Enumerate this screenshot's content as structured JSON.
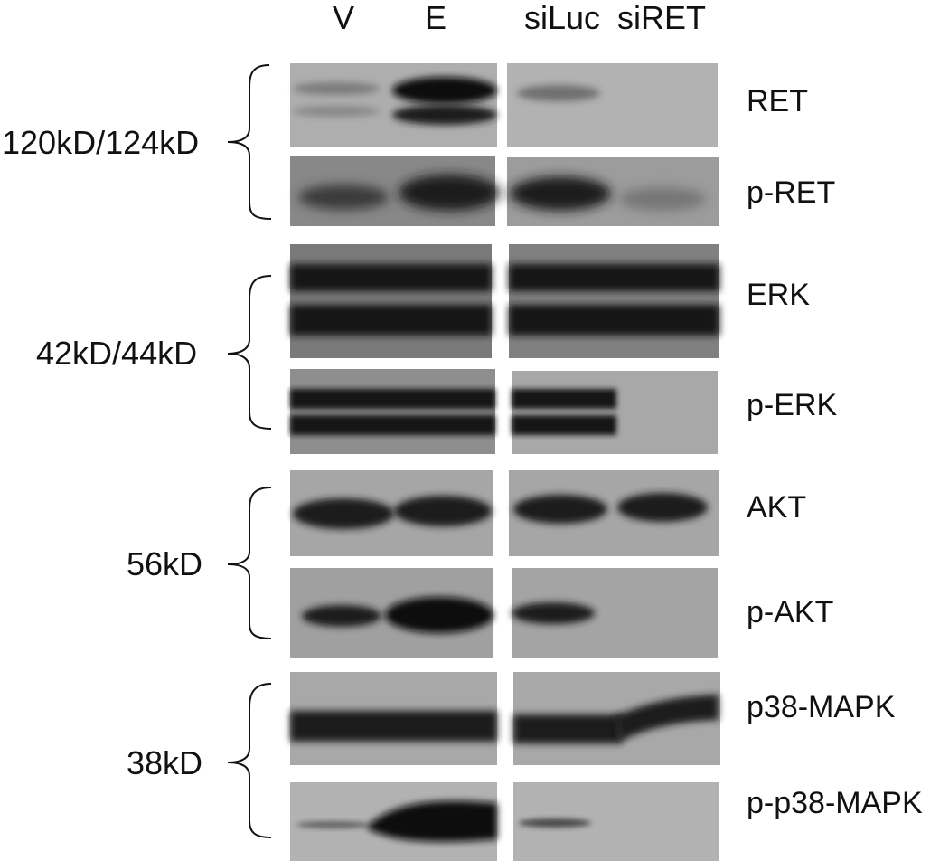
{
  "lanes": {
    "v": "V",
    "e": "E",
    "siluc": "siLuc",
    "siret": "siRET"
  },
  "molecular_weights": {
    "ret": "120kD/124kD",
    "erk": "42kD/44kD",
    "akt": "56kD",
    "p38": "38kD"
  },
  "proteins": {
    "ret": "RET",
    "p_ret": "p-RET",
    "erk": "ERK",
    "p_erk": "p-ERK",
    "akt": "AKT",
    "p_akt": "p-AKT",
    "p38": "p38-MAPK",
    "p_p38": "p-p38-MAPK"
  },
  "band_intensity": {
    "RET": {
      "V": 0.3,
      "E": 0.95,
      "siLuc": 0.4,
      "siRET": 0.0
    },
    "p-RET": {
      "V": 0.7,
      "E": 0.95,
      "siLuc": 0.9,
      "siRET": 0.4
    },
    "ERK": {
      "V": 1.0,
      "E": 1.0,
      "siLuc": 1.0,
      "siRET": 1.0
    },
    "p-ERK": {
      "V": 1.0,
      "E": 1.0,
      "siLuc": 1.0,
      "siRET": 0.0
    },
    "AKT": {
      "V": 0.95,
      "E": 0.95,
      "siLuc": 0.95,
      "siRET": 0.95
    },
    "p-AKT": {
      "V": 0.85,
      "E": 1.0,
      "siLuc": 0.85,
      "siRET": 0.0
    },
    "p38-MAPK": {
      "V": 0.95,
      "E": 0.95,
      "siLuc": 0.95,
      "siRET": 0.95
    },
    "p-p38-MAPK": {
      "V": 0.2,
      "E": 1.0,
      "siLuc": 0.4,
      "siRET": 0.0
    }
  }
}
